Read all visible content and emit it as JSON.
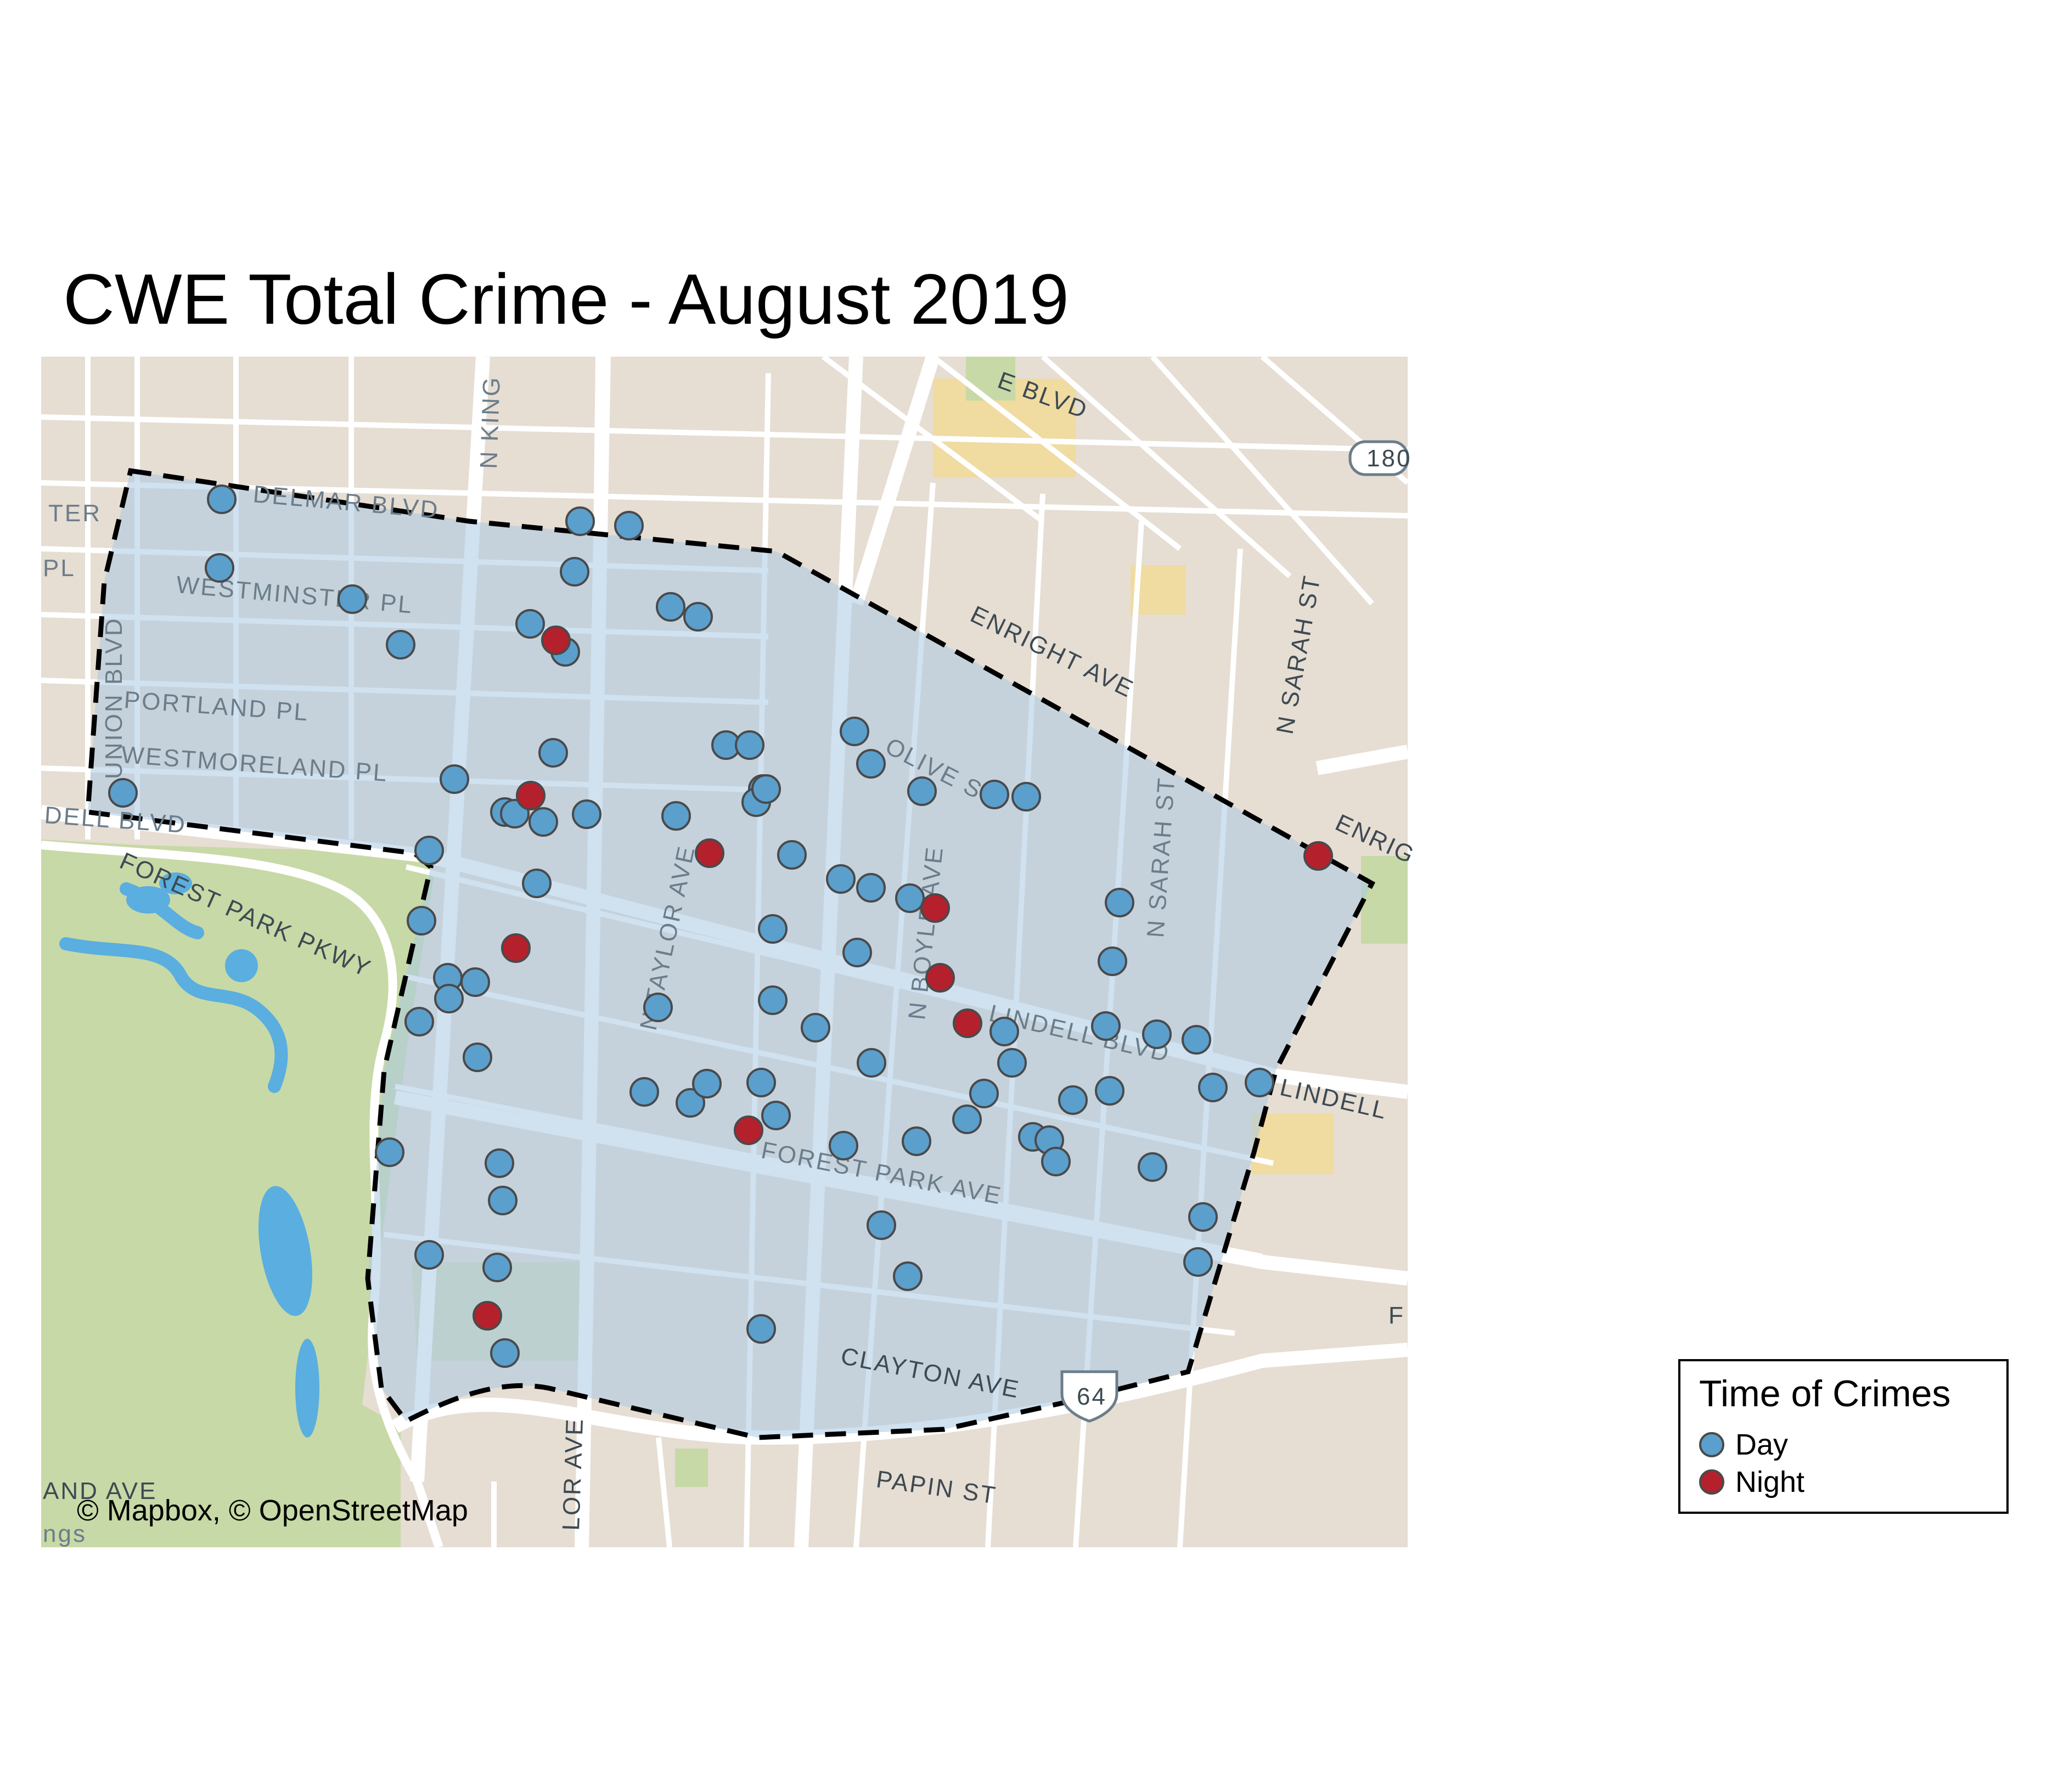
{
  "title": "CWE Total Crime - August 2019",
  "attribution": "© Mapbox, © OpenStreetMap",
  "colors": {
    "day": "#5b9fcd",
    "night": "#b5202d",
    "marker_stroke": "#4a4a4a",
    "land": "#e6ddd3",
    "park": "#c7d9a6",
    "water": "#5aaee0",
    "road": "#ffffff",
    "boundary_fill": "#a9c9e4",
    "boundary_stroke": "#000000"
  },
  "legend": {
    "title": "Time of Crimes",
    "items": [
      {
        "label": "Day",
        "color": "#5b9fcd"
      },
      {
        "label": "Night",
        "color": "#b5202d"
      }
    ]
  },
  "street_labels": [
    "N KING",
    "DELMAR BLVD",
    "TER",
    "PL",
    "WESTMINSTER PL",
    "PORTLAND PL",
    "WESTMORELAND PL",
    "DELL BLVD",
    "FOREST PARK PKWY",
    "N TAYLOR AVE",
    "N BOYLE AVE",
    "N SARAH ST",
    "N SARAH ST",
    "ENRIGHT AVE",
    "OLIVE ST",
    "LINDELL BLVD",
    "LINDELL",
    "FOREST PARK AVE",
    "CLAYTON AVE",
    "PAPIN ST",
    "AND AVE",
    "LOR AVE",
    "E BLVD",
    "ENRIG",
    "180",
    "64",
    "F",
    "ngs",
    "UNION BLVD"
  ]
}
